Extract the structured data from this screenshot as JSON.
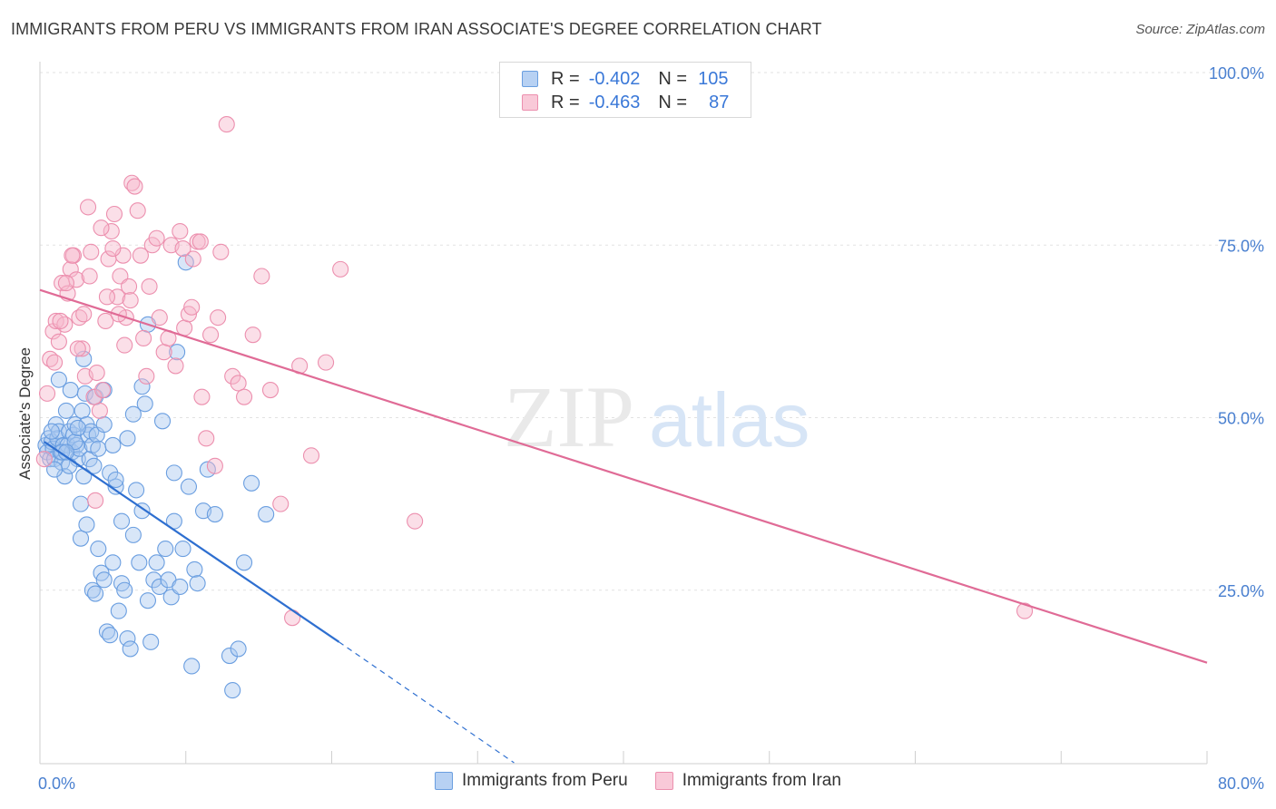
{
  "header": {
    "title": "IMMIGRANTS FROM PERU VS IMMIGRANTS FROM IRAN ASSOCIATE'S DEGREE CORRELATION CHART",
    "source": "Source: ZipAtlas.com"
  },
  "watermark": {
    "zip": "ZIP",
    "atlas": "atlas"
  },
  "legend_stats": [
    {
      "r_label": "R =",
      "r_value": "-0.402",
      "n_label": "N =",
      "n_value": "105"
    },
    {
      "r_label": "R =",
      "r_value": "-0.463",
      "n_label": "N =",
      "n_value": "87"
    }
  ],
  "colors": {
    "peru_fill": "#a9c8f0",
    "peru_stroke": "#6a9ee0",
    "peru_line": "#2e6fd0",
    "iran_fill": "#f6b8cc",
    "iran_stroke": "#ec8fae",
    "iran_line": "#e06b96",
    "axis_text": "#4a80d0",
    "grid": "#e2e2e2"
  },
  "chart_data": {
    "type": "scatter",
    "title": "IMMIGRANTS FROM PERU VS IMMIGRANTS FROM IRAN ASSOCIATE'S DEGREE CORRELATION CHART",
    "xlabel": "",
    "ylabel": "Associate's Degree",
    "xlim": [
      0,
      80
    ],
    "ylim": [
      0,
      100
    ],
    "x_tick_labels": [
      "0.0%",
      "80.0%"
    ],
    "y_ticks": [
      {
        "value": 25,
        "label": "25.0%"
      },
      {
        "value": 50,
        "label": "50.0%"
      },
      {
        "value": 75,
        "label": "75.0%"
      },
      {
        "value": 100,
        "label": "100.0%"
      }
    ],
    "grid": true,
    "legend_position": "bottom",
    "series": [
      {
        "name": "Immigrants from Peru",
        "r": -0.402,
        "n": 105,
        "trend": {
          "x1": 0.3,
          "y1": 46.5,
          "x2": 20.5,
          "y2": 17.5,
          "dash_to_x": 32.5,
          "dash_to_y": 0
        },
        "points": [
          [
            0.4,
            46
          ],
          [
            0.5,
            45
          ],
          [
            0.6,
            47
          ],
          [
            0.7,
            44
          ],
          [
            0.8,
            46.5
          ],
          [
            0.9,
            45.5
          ],
          [
            1.0,
            44
          ],
          [
            1.1,
            49
          ],
          [
            1.2,
            47
          ],
          [
            1.3,
            48
          ],
          [
            1.4,
            45
          ],
          [
            1.5,
            43.5
          ],
          [
            1.6,
            46
          ],
          [
            1.7,
            41.5
          ],
          [
            1.8,
            51
          ],
          [
            1.9,
            46
          ],
          [
            2.0,
            48
          ],
          [
            2.1,
            54
          ],
          [
            2.2,
            45
          ],
          [
            2.3,
            47.5
          ],
          [
            2.4,
            49
          ],
          [
            2.5,
            46
          ],
          [
            2.6,
            44
          ],
          [
            2.7,
            45.5
          ],
          [
            2.8,
            37.5
          ],
          [
            2.9,
            51
          ],
          [
            3.0,
            58.5
          ],
          [
            3.1,
            53.5
          ],
          [
            3.2,
            49
          ],
          [
            3.3,
            47.5
          ],
          [
            3.4,
            44
          ],
          [
            3.5,
            48
          ],
          [
            3.6,
            46
          ],
          [
            3.7,
            43
          ],
          [
            3.8,
            53
          ],
          [
            3.9,
            47.5
          ],
          [
            4.0,
            45.5
          ],
          [
            4.2,
            27.5
          ],
          [
            4.4,
            26.5
          ],
          [
            4.6,
            19
          ],
          [
            4.8,
            42
          ],
          [
            5.0,
            29
          ],
          [
            5.2,
            40
          ],
          [
            5.4,
            22
          ],
          [
            5.6,
            26
          ],
          [
            5.8,
            25
          ],
          [
            6.0,
            18
          ],
          [
            6.2,
            16.5
          ],
          [
            6.4,
            33
          ],
          [
            6.6,
            39.5
          ],
          [
            6.8,
            29
          ],
          [
            7.0,
            36.5
          ],
          [
            7.2,
            52
          ],
          [
            7.4,
            23.5
          ],
          [
            7.6,
            17.5
          ],
          [
            7.8,
            26.5
          ],
          [
            8.0,
            29
          ],
          [
            8.2,
            25.5
          ],
          [
            8.4,
            49.5
          ],
          [
            8.6,
            31
          ],
          [
            8.8,
            26.5
          ],
          [
            9.0,
            24
          ],
          [
            9.2,
            35
          ],
          [
            9.4,
            59.5
          ],
          [
            9.6,
            25.5
          ],
          [
            9.8,
            31
          ],
          [
            10.0,
            72.5
          ],
          [
            10.2,
            40
          ],
          [
            10.4,
            14
          ],
          [
            10.6,
            28
          ],
          [
            10.8,
            26
          ],
          [
            11.2,
            36.5
          ],
          [
            11.5,
            42.5
          ],
          [
            12.0,
            36
          ],
          [
            13.0,
            15.5
          ],
          [
            13.2,
            10.5
          ],
          [
            13.6,
            16.5
          ],
          [
            14.0,
            29
          ],
          [
            14.5,
            40.5
          ],
          [
            15.5,
            36
          ],
          [
            1.5,
            45
          ],
          [
            2.0,
            43
          ],
          [
            2.4,
            46.5
          ],
          [
            2.8,
            32.5
          ],
          [
            3.2,
            34.5
          ],
          [
            3.6,
            25
          ],
          [
            4.0,
            31
          ],
          [
            4.4,
            49
          ],
          [
            4.8,
            18.5
          ],
          [
            5.2,
            41
          ],
          [
            5.6,
            35
          ],
          [
            6.0,
            47
          ],
          [
            6.4,
            50.5
          ],
          [
            1.0,
            42.5
          ],
          [
            1.3,
            55.5
          ],
          [
            2.6,
            48.5
          ],
          [
            3.0,
            41.5
          ],
          [
            7.4,
            63.5
          ],
          [
            9.2,
            42
          ],
          [
            7.0,
            54.5
          ],
          [
            3.8,
            24.5
          ],
          [
            4.4,
            54
          ],
          [
            5.0,
            46
          ],
          [
            0.8,
            48
          ],
          [
            1.8,
            45
          ]
        ]
      },
      {
        "name": "Immigrants from Iran",
        "r": -0.463,
        "n": 87,
        "trend": {
          "x1": 0,
          "y1": 68.5,
          "x2": 80,
          "y2": 14.5
        },
        "points": [
          [
            0.3,
            44
          ],
          [
            0.5,
            53.5
          ],
          [
            0.7,
            58.5
          ],
          [
            0.9,
            62.5
          ],
          [
            1.1,
            64
          ],
          [
            1.3,
            61
          ],
          [
            1.5,
            69.5
          ],
          [
            1.7,
            63.5
          ],
          [
            1.9,
            68
          ],
          [
            2.1,
            71.5
          ],
          [
            2.3,
            73.5
          ],
          [
            2.5,
            70
          ],
          [
            2.7,
            64.5
          ],
          [
            2.9,
            60
          ],
          [
            3.1,
            56
          ],
          [
            3.3,
            80.5
          ],
          [
            3.5,
            74
          ],
          [
            3.7,
            53
          ],
          [
            3.9,
            56.5
          ],
          [
            4.1,
            51
          ],
          [
            4.3,
            54
          ],
          [
            4.5,
            64
          ],
          [
            4.7,
            73
          ],
          [
            4.9,
            77
          ],
          [
            5.1,
            79.5
          ],
          [
            5.3,
            67.5
          ],
          [
            5.5,
            70.5
          ],
          [
            5.7,
            73.5
          ],
          [
            5.9,
            64.5
          ],
          [
            6.1,
            69
          ],
          [
            6.3,
            84
          ],
          [
            6.5,
            83.5
          ],
          [
            6.7,
            80
          ],
          [
            6.9,
            73.5
          ],
          [
            7.1,
            61.5
          ],
          [
            7.3,
            56
          ],
          [
            7.5,
            69
          ],
          [
            7.7,
            75
          ],
          [
            8.0,
            76
          ],
          [
            8.2,
            64.5
          ],
          [
            8.5,
            59.5
          ],
          [
            8.8,
            61.5
          ],
          [
            9.0,
            75
          ],
          [
            9.3,
            57.5
          ],
          [
            9.6,
            77
          ],
          [
            9.9,
            63
          ],
          [
            10.2,
            65
          ],
          [
            10.5,
            73
          ],
          [
            10.8,
            75.5
          ],
          [
            11.1,
            53
          ],
          [
            11.4,
            47
          ],
          [
            11.7,
            62
          ],
          [
            12.0,
            43
          ],
          [
            12.4,
            74
          ],
          [
            12.8,
            92.5
          ],
          [
            13.2,
            56
          ],
          [
            13.6,
            55
          ],
          [
            14.0,
            53
          ],
          [
            14.6,
            62
          ],
          [
            15.2,
            70.5
          ],
          [
            15.8,
            54
          ],
          [
            16.5,
            37.5
          ],
          [
            17.3,
            21
          ],
          [
            17.8,
            57.5
          ],
          [
            18.6,
            44.5
          ],
          [
            19.6,
            58
          ],
          [
            20.6,
            71.5
          ],
          [
            25.7,
            35
          ],
          [
            67.5,
            22
          ],
          [
            1.0,
            58
          ],
          [
            1.4,
            64
          ],
          [
            1.8,
            69.5
          ],
          [
            2.2,
            73.5
          ],
          [
            2.6,
            60
          ],
          [
            3.0,
            65
          ],
          [
            3.4,
            70.5
          ],
          [
            3.8,
            38
          ],
          [
            4.2,
            77.5
          ],
          [
            4.6,
            67.5
          ],
          [
            5.0,
            74.5
          ],
          [
            5.4,
            65
          ],
          [
            5.8,
            60.5
          ],
          [
            6.2,
            67
          ],
          [
            9.8,
            74.5
          ],
          [
            10.4,
            66
          ],
          [
            11.0,
            75.5
          ],
          [
            12.2,
            64.5
          ]
        ]
      }
    ]
  }
}
